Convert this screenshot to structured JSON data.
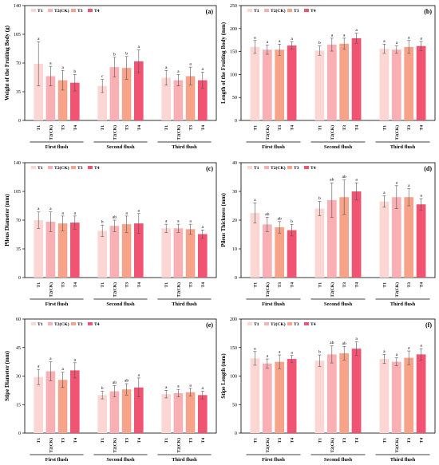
{
  "colors": {
    "T1": "#fcd6d3",
    "T2(CK)": "#f9afb4",
    "T3": "#f7a38a",
    "T4": "#f05472"
  },
  "chart_data": [
    {
      "type": "bar",
      "panel": "(a)",
      "ylabel": "Weight of the Fruiting Body (g)",
      "ylim": [
        0,
        140
      ],
      "yticks": [
        0,
        35,
        70,
        105,
        140
      ],
      "groups": [
        "First flush",
        "Second flush",
        "Third flush"
      ],
      "categories": [
        "T1",
        "T2(CK)",
        "T3",
        "T4"
      ],
      "legend": [
        "T1",
        "T2(CK)",
        "T3",
        "T4"
      ],
      "series": [
        {
          "group": "First flush",
          "values": [
            69,
            54,
            49,
            46
          ],
          "errors": [
            27,
            12,
            12,
            10
          ],
          "letters": [
            "a",
            "a",
            "a",
            "b"
          ]
        },
        {
          "group": "Second flush",
          "values": [
            42,
            65,
            64,
            72
          ],
          "errors": [
            8,
            12,
            14,
            14
          ],
          "letters": [
            "c",
            "b",
            "b",
            "a"
          ]
        },
        {
          "group": "Third flush",
          "values": [
            52,
            49,
            54,
            49
          ],
          "errors": [
            9,
            7,
            11,
            10
          ],
          "letters": [
            "a",
            "a",
            "a",
            "a"
          ]
        }
      ]
    },
    {
      "type": "bar",
      "panel": "(b)",
      "ylabel": "Length of the Fruiting Body (mm)",
      "ylim": [
        0,
        250
      ],
      "yticks": [
        0,
        50,
        100,
        150,
        200,
        250
      ],
      "groups": [
        "First flush",
        "Second flush",
        "Third flush"
      ],
      "categories": [
        "T1",
        "T2(CK)",
        "T3",
        "T4"
      ],
      "legend": [
        "T1",
        "T2(CK)",
        "T3",
        "T4"
      ],
      "series": [
        {
          "group": "First flush",
          "values": [
            160,
            154,
            154,
            163
          ],
          "errors": [
            14,
            10,
            12,
            8
          ],
          "letters": [
            "a",
            "a",
            "a",
            "a"
          ]
        },
        {
          "group": "Second flush",
          "values": [
            152,
            165,
            167,
            179
          ],
          "errors": [
            10,
            14,
            12,
            11
          ],
          "letters": [
            "b",
            "a",
            "a",
            "a"
          ]
        },
        {
          "group": "Third flush",
          "values": [
            156,
            154,
            160,
            162
          ],
          "errors": [
            10,
            8,
            14,
            10
          ],
          "letters": [
            "a",
            "a",
            "a",
            "a"
          ]
        }
      ]
    },
    {
      "type": "bar",
      "panel": "(c)",
      "ylabel": "Pileus Diameter (mm)",
      "ylim": [
        0,
        140
      ],
      "yticks": [
        0,
        35,
        70,
        105,
        140
      ],
      "groups": [
        "First flush",
        "Second flush",
        "Third flush"
      ],
      "categories": [
        "T1",
        "T2(CK)",
        "T3",
        "T4"
      ],
      "legend": [
        "T1",
        "T2(CK)",
        "T3",
        "T4"
      ],
      "series": [
        {
          "group": "First flush",
          "values": [
            70,
            68,
            66,
            67
          ],
          "errors": [
            10,
            12,
            9,
            8
          ],
          "letters": [
            "a",
            "a",
            "a",
            "a"
          ]
        },
        {
          "group": "Second flush",
          "values": [
            57,
            63,
            65,
            66
          ],
          "errors": [
            7,
            7,
            10,
            12
          ],
          "letters": [
            "b",
            "ab",
            "a",
            "a"
          ]
        },
        {
          "group": "Third flush",
          "values": [
            60,
            60,
            59,
            53
          ],
          "errors": [
            5,
            5,
            6,
            5
          ],
          "letters": [
            "a",
            "a",
            "a",
            "a"
          ]
        }
      ]
    },
    {
      "type": "bar",
      "panel": "(d)",
      "ylabel": "Pileus Thickness (mm)",
      "ylim": [
        0,
        40
      ],
      "yticks": [
        0,
        10,
        20,
        30,
        40
      ],
      "groups": [
        "First flush",
        "Second flush",
        "Third flush"
      ],
      "categories": [
        "T1",
        "T2(CK)",
        "T3",
        "T4"
      ],
      "legend": [
        "T1",
        "T2(CK)",
        "T3",
        "T4"
      ],
      "series": [
        {
          "group": "First flush",
          "values": [
            22.5,
            18.5,
            17.5,
            16.5
          ],
          "errors": [
            3.5,
            2.5,
            2.0,
            2.0
          ],
          "letters": [
            "a",
            "ab",
            "ab",
            "b"
          ]
        },
        {
          "group": "Second flush",
          "values": [
            24,
            27,
            28,
            30
          ],
          "errors": [
            2.5,
            6,
            6,
            3
          ],
          "letters": [
            "b",
            "ab",
            "ab",
            "a"
          ]
        },
        {
          "group": "Third flush",
          "values": [
            26.5,
            28,
            28,
            25.5
          ],
          "errors": [
            2,
            4,
            3,
            2
          ],
          "letters": [
            "a",
            "a",
            "a",
            "a"
          ]
        }
      ]
    },
    {
      "type": "bar",
      "panel": "(e)",
      "ylabel": "Stipe Diameter (mm)",
      "ylim": [
        0,
        60
      ],
      "yticks": [
        0,
        15,
        30,
        45,
        60
      ],
      "groups": [
        "First flush",
        "Second flush",
        "Third flush"
      ],
      "categories": [
        "T1",
        "T2(CK)",
        "T3",
        "T4"
      ],
      "legend": [
        "T1",
        "T2(CK)",
        "T3",
        "T4"
      ],
      "series": [
        {
          "group": "First flush",
          "values": [
            29.5,
            32.5,
            28,
            33
          ],
          "errors": [
            4,
            5,
            4,
            4
          ],
          "letters": [
            "a",
            "a",
            "a",
            "a"
          ]
        },
        {
          "group": "Second flush",
          "values": [
            20,
            22,
            23,
            24
          ],
          "errors": [
            2,
            3,
            3,
            5
          ],
          "letters": [
            "b",
            "ab",
            "ab",
            "a"
          ]
        },
        {
          "group": "Third flush",
          "values": [
            20.5,
            21,
            21.5,
            20
          ],
          "errors": [
            2,
            2,
            2,
            2
          ],
          "letters": [
            "a",
            "a",
            "a",
            "a"
          ]
        }
      ]
    },
    {
      "type": "bar",
      "panel": "(f)",
      "ylabel": "Stipe Length (mm)",
      "ylim": [
        0,
        200
      ],
      "yticks": [
        0,
        50,
        100,
        150,
        200
      ],
      "groups": [
        "First flush",
        "Second flush",
        "Third flush"
      ],
      "categories": [
        "T1",
        "T2(CK)",
        "T3",
        "T4"
      ],
      "legend": [
        "T1",
        "T2(CK)",
        "T3",
        "T4"
      ],
      "series": [
        {
          "group": "First flush",
          "values": [
            131,
            122,
            125,
            130
          ],
          "errors": [
            12,
            8,
            12,
            6
          ],
          "letters": [
            "a",
            "a",
            "a",
            "a"
          ]
        },
        {
          "group": "Second flush",
          "values": [
            127,
            138,
            140,
            148
          ],
          "errors": [
            10,
            15,
            12,
            12
          ],
          "letters": [
            "b",
            "ab",
            "ab",
            "a"
          ]
        },
        {
          "group": "Third flush",
          "values": [
            130,
            125,
            132,
            138
          ],
          "errors": [
            8,
            7,
            12,
            10
          ],
          "letters": [
            "a",
            "a",
            "a",
            "a"
          ]
        }
      ]
    }
  ]
}
